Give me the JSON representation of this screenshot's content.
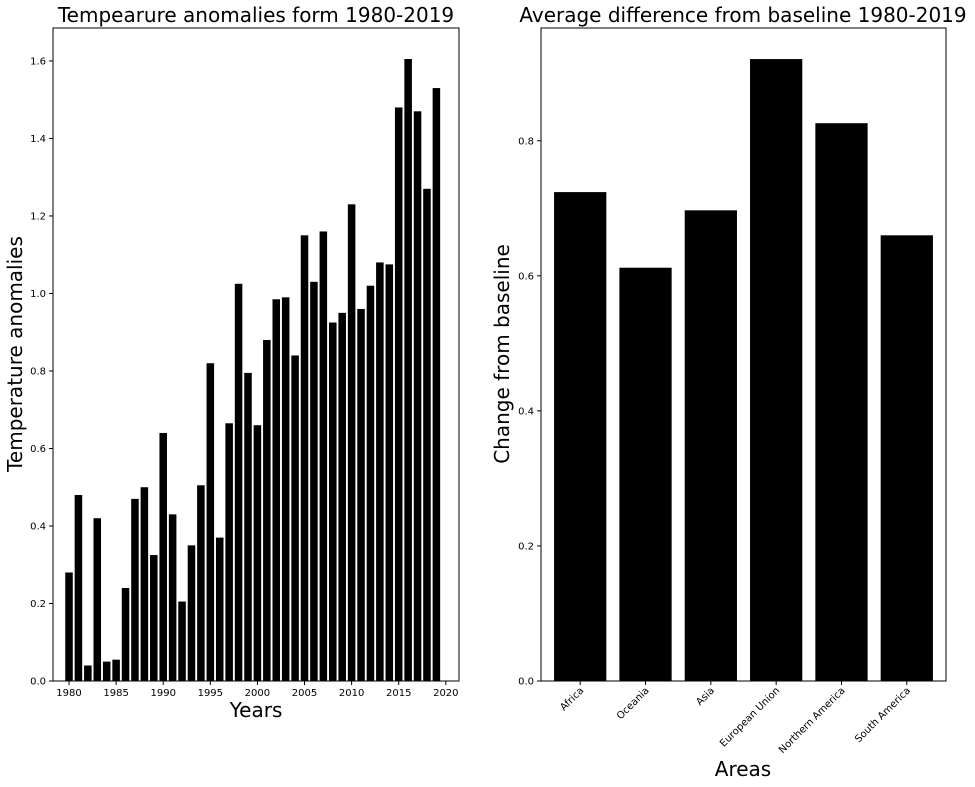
{
  "chart_data": [
    {
      "type": "bar",
      "title": "Tempearure anomalies form 1980-2019",
      "xlabel": "Years",
      "ylabel": "Temperature anomalies",
      "x": [
        1980,
        1981,
        1982,
        1983,
        1984,
        1985,
        1986,
        1987,
        1988,
        1989,
        1990,
        1991,
        1992,
        1993,
        1994,
        1995,
        1996,
        1997,
        1998,
        1999,
        2000,
        2001,
        2002,
        2003,
        2004,
        2005,
        2006,
        2007,
        2008,
        2009,
        2010,
        2011,
        2012,
        2013,
        2014,
        2015,
        2016,
        2017,
        2018,
        2019
      ],
      "values": [
        0.28,
        0.48,
        0.04,
        0.42,
        0.05,
        0.055,
        0.24,
        0.47,
        0.5,
        0.325,
        0.64,
        0.43,
        0.205,
        0.35,
        0.505,
        0.82,
        0.37,
        0.665,
        1.025,
        0.795,
        0.66,
        0.88,
        0.985,
        0.99,
        0.84,
        1.15,
        1.03,
        1.16,
        0.925,
        0.95,
        1.23,
        0.96,
        1.02,
        1.08,
        1.075,
        1.48,
        1.605,
        1.47,
        1.27,
        1.53
      ],
      "xticks": [
        "1980",
        "1985",
        "1990",
        "1995",
        "2000",
        "2005",
        "2010",
        "2015",
        "2020"
      ],
      "yticks": [
        "0.0",
        "0.2",
        "0.4",
        "0.6",
        "0.8",
        "1.0",
        "1.2",
        "1.4",
        "1.6"
      ],
      "xlim": [
        1978.3,
        2021.4
      ],
      "ylim": [
        0,
        1.685
      ],
      "grid": false,
      "color": "#000000"
    },
    {
      "type": "bar",
      "title": "Average difference from baseline 1980-2019",
      "xlabel": "Areas",
      "ylabel": "Change from baseline",
      "categories": [
        "Africa",
        "Oceania",
        "Asia",
        "European Union",
        "Northern America",
        "South America"
      ],
      "values": [
        0.724,
        0.612,
        0.697,
        0.921,
        0.826,
        0.66
      ],
      "yticks": [
        "0.0",
        "0.2",
        "0.4",
        "0.6",
        "0.8"
      ],
      "ylim": [
        0,
        0.967
      ],
      "grid": false,
      "color": "#000000"
    }
  ]
}
